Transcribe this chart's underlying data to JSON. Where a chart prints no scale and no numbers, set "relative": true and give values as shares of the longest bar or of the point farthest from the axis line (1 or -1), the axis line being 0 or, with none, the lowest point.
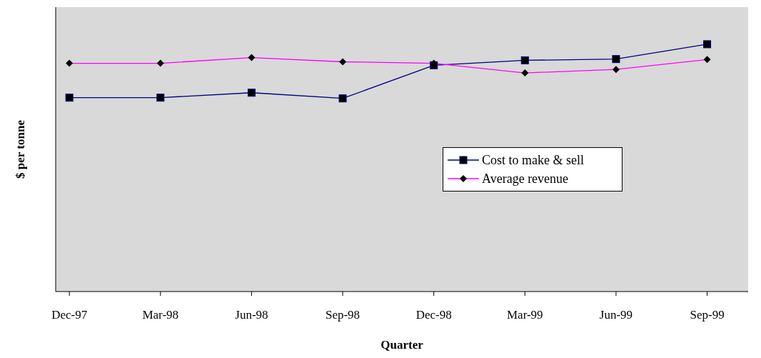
{
  "chart_data": {
    "type": "line",
    "relative": true,
    "xlabel": "Quarter",
    "ylabel": "$ per tonne",
    "categories": [
      "Dec-97",
      "Mar-98",
      "Jun-98",
      "Sep-98",
      "Dec-98",
      "Mar-99",
      "Jun-99",
      "Sep-99"
    ],
    "series": [
      {
        "name": "Cost to make & sell",
        "color": "#000080",
        "marker": "square",
        "values": [
          0.784,
          0.784,
          0.804,
          0.781,
          0.915,
          0.935,
          0.94,
          1
        ]
      },
      {
        "name": "Average revenue",
        "color": "#ff00ff",
        "marker": "diamond",
        "values": [
          0.923,
          0.923,
          0.946,
          0.929,
          0.923,
          0.884,
          0.898,
          0.938
        ]
      }
    ],
    "legend": "right",
    "grid": false
  }
}
